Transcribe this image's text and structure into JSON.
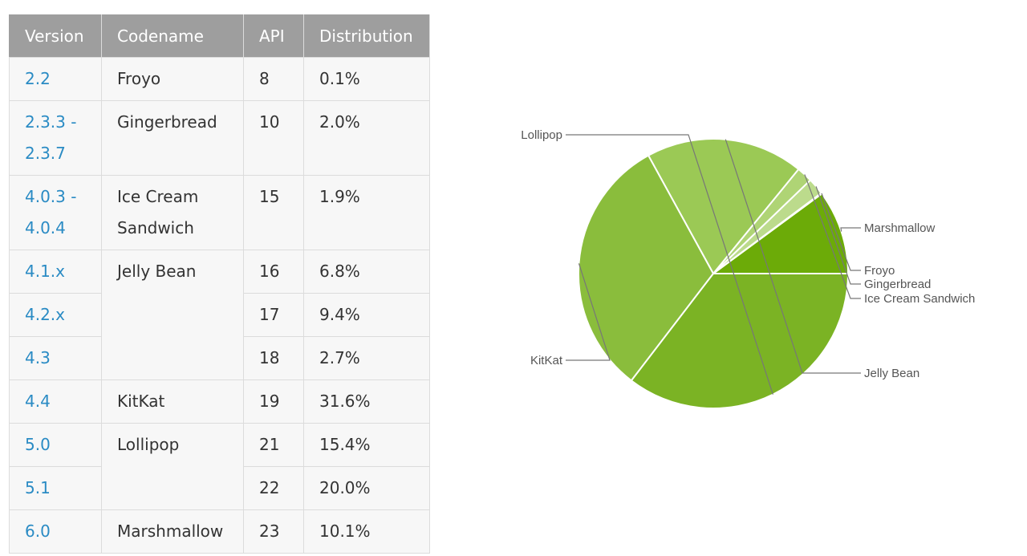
{
  "table": {
    "headers": [
      "Version",
      "Codename",
      "API",
      "Distribution"
    ],
    "rows": [
      {
        "version": "2.2",
        "codename": "Froyo",
        "api": "8",
        "distribution": "0.1%"
      },
      {
        "version": "2.3.3 -\n2.3.7",
        "codename": "Gingerbread",
        "api": "10",
        "distribution": "2.0%"
      },
      {
        "version": "4.0.3 -\n4.0.4",
        "codename": "Ice Cream\nSandwich",
        "api": "15",
        "distribution": "1.9%"
      },
      {
        "version": "4.1.x",
        "codename": "Jelly Bean",
        "api": "16",
        "distribution": "6.8%"
      },
      {
        "version": "4.2.x",
        "codename": "",
        "api": "17",
        "distribution": "9.4%"
      },
      {
        "version": "4.3",
        "codename": "",
        "api": "18",
        "distribution": "2.7%"
      },
      {
        "version": "4.4",
        "codename": "KitKat",
        "api": "19",
        "distribution": "31.6%"
      },
      {
        "version": "5.0",
        "codename": "Lollipop",
        "api": "21",
        "distribution": "15.4%"
      },
      {
        "version": "5.1",
        "codename": "",
        "api": "22",
        "distribution": "20.0%"
      },
      {
        "version": "6.0",
        "codename": "Marshmallow",
        "api": "23",
        "distribution": "10.1%"
      }
    ]
  },
  "chart_data": {
    "type": "pie",
    "title": "",
    "legend": "labels beside slices",
    "slices": [
      {
        "label": "Marshmallow",
        "value": 10.1,
        "color": "#6cab08"
      },
      {
        "label": "Froyo",
        "value": 0.1,
        "color": "#c9e3a7"
      },
      {
        "label": "Gingerbread",
        "value": 2.0,
        "color": "#bcdb8c"
      },
      {
        "label": "Ice Cream Sandwich",
        "value": 1.9,
        "color": "#afd475"
      },
      {
        "label": "Jelly Bean",
        "value": 18.9,
        "color": "#9bc955"
      },
      {
        "label": "KitKat",
        "value": 31.6,
        "color": "#8abd3c"
      },
      {
        "label": "Lollipop",
        "value": 35.4,
        "color": "#7bb324"
      }
    ]
  }
}
